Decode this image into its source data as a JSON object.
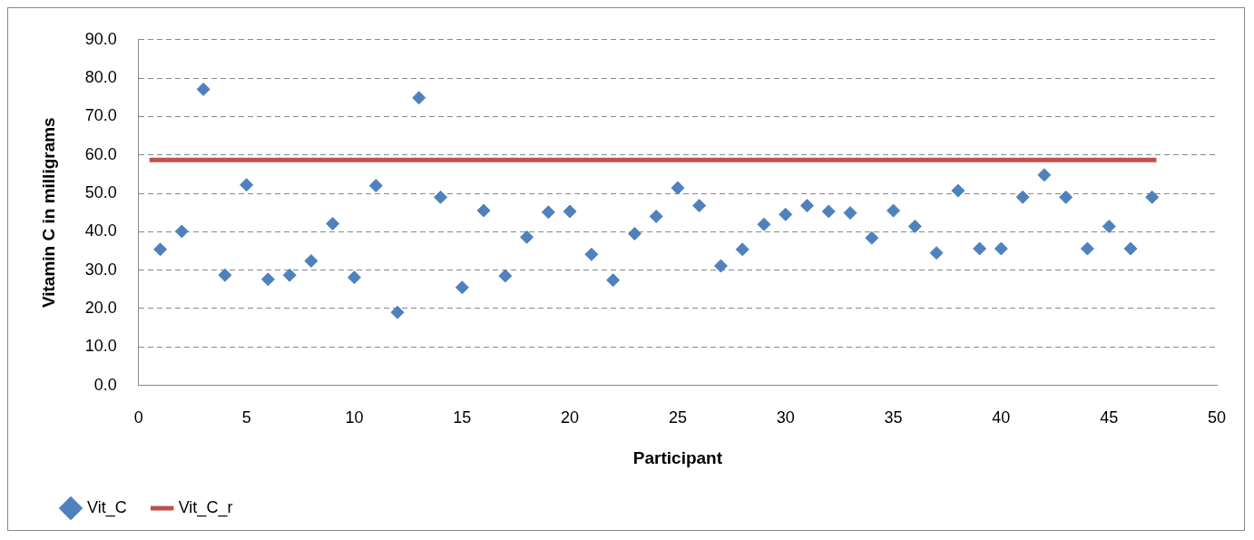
{
  "chart_data": {
    "type": "scatter",
    "xlabel": "Participant",
    "ylabel": "Vitamin C in milligrams",
    "xlim": [
      0,
      50
    ],
    "xticks": [
      0,
      5,
      10,
      15,
      20,
      25,
      30,
      35,
      40,
      45,
      50
    ],
    "ylim": [
      0,
      90
    ],
    "yticks": [
      {
        "value": 0,
        "label": "0.0"
      },
      {
        "value": 10,
        "label": "10.0"
      },
      {
        "value": 20,
        "label": "20.0"
      },
      {
        "value": 30,
        "label": "30.0"
      },
      {
        "value": 40,
        "label": "40.0"
      },
      {
        "value": 50,
        "label": "50.0"
      },
      {
        "value": 60,
        "label": "60.0"
      },
      {
        "value": 70,
        "label": "70.0"
      },
      {
        "value": 80,
        "label": "80.0"
      },
      {
        "value": 90,
        "label": "90.0"
      }
    ],
    "grid": "y",
    "legend": "bottom left",
    "series": [
      {
        "name": "Vit_C",
        "color": "#4f81bd",
        "marker": "diamond",
        "x": [
          1,
          2,
          3,
          4,
          5,
          6,
          7,
          8,
          9,
          10,
          11,
          12,
          13,
          14,
          15,
          16,
          17,
          18,
          19,
          20,
          21,
          22,
          23,
          24,
          25,
          26,
          27,
          28,
          29,
          30,
          31,
          32,
          33,
          34,
          35,
          36,
          37,
          38,
          39,
          40,
          41,
          42,
          43,
          44,
          45,
          46,
          47
        ],
        "values": [
          35.4,
          40.1,
          77.1,
          28.7,
          52.2,
          27.6,
          28.7,
          32.4,
          42.1,
          28.1,
          52.0,
          19.0,
          74.9,
          49.0,
          25.5,
          45.5,
          28.5,
          38.6,
          45.1,
          45.3,
          34.1,
          27.4,
          39.5,
          44.0,
          51.4,
          46.8,
          31.1,
          35.4,
          41.9,
          44.5,
          46.8,
          45.3,
          44.9,
          38.4,
          45.5,
          41.4,
          34.5,
          50.7,
          35.6,
          35.6,
          49.0,
          54.8,
          49.0,
          35.6,
          41.4,
          35.6,
          49.0
        ]
      },
      {
        "name": "Vit_C_r",
        "type": "line",
        "color": "#c0504d",
        "marker": "none",
        "x": [
          0.5,
          47.2
        ],
        "values": [
          58.7,
          58.7
        ]
      }
    ]
  }
}
